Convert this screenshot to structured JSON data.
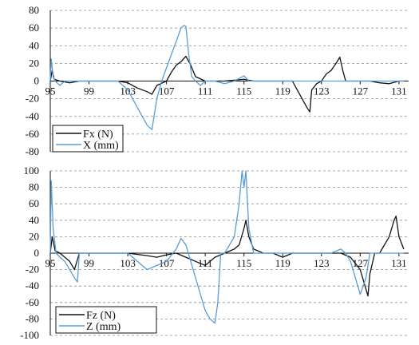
{
  "chart_data": [
    {
      "type": "line",
      "xlim": [
        95,
        132
      ],
      "ylim": [
        -80,
        80
      ],
      "x_ticks": [
        95,
        99,
        103,
        107,
        111,
        115,
        119,
        123,
        127,
        131
      ],
      "y_ticks": [
        80,
        60,
        40,
        20,
        0,
        -20,
        -40,
        -60,
        -80
      ],
      "grid": "horizontal dashed",
      "legend_position": "bottom-left",
      "series": [
        {
          "name": "Fx (N)",
          "color": "#111111",
          "points": [
            [
              95,
              0
            ],
            [
              95.2,
              12
            ],
            [
              95.4,
              2
            ],
            [
              96,
              0
            ],
            [
              97,
              -2
            ],
            [
              98,
              0
            ],
            [
              100,
              0
            ],
            [
              102,
              0
            ],
            [
              103,
              -2
            ],
            [
              104,
              -8
            ],
            [
              105,
              -12
            ],
            [
              105.5,
              -15
            ],
            [
              106,
              -5
            ],
            [
              107,
              0
            ],
            [
              107.5,
              10
            ],
            [
              108,
              18
            ],
            [
              108.5,
              22
            ],
            [
              109,
              28
            ],
            [
              109.5,
              18
            ],
            [
              110,
              5
            ],
            [
              111,
              0
            ],
            [
              112,
              0
            ],
            [
              113,
              0
            ],
            [
              115,
              2
            ],
            [
              116,
              0
            ],
            [
              118,
              0
            ],
            [
              120,
              0
            ],
            [
              120.5,
              -10
            ],
            [
              121,
              -20
            ],
            [
              121.5,
              -30
            ],
            [
              121.8,
              -35
            ],
            [
              122,
              -10
            ],
            [
              122.5,
              -3
            ],
            [
              123,
              0
            ],
            [
              123.5,
              8
            ],
            [
              124,
              12
            ],
            [
              124.5,
              20
            ],
            [
              124.9,
              27
            ],
            [
              125.2,
              12
            ],
            [
              125.5,
              0
            ],
            [
              126,
              0
            ],
            [
              128,
              0
            ],
            [
              129,
              -2
            ],
            [
              130,
              -3
            ],
            [
              131,
              0
            ],
            [
              131.5,
              0
            ]
          ]
        },
        {
          "name": "X (mm)",
          "color": "#5b9bd5",
          "points": [
            [
              95,
              0
            ],
            [
              95.1,
              25
            ],
            [
              95.3,
              5
            ],
            [
              95.5,
              0
            ],
            [
              96,
              -5
            ],
            [
              96.5,
              0
            ],
            [
              97,
              0
            ],
            [
              100,
              0
            ],
            [
              102,
              0
            ],
            [
              102.5,
              -5
            ],
            [
              103,
              -10
            ],
            [
              103.5,
              -20
            ],
            [
              104,
              -30
            ],
            [
              104.5,
              -40
            ],
            [
              105,
              -50
            ],
            [
              105.5,
              -55
            ],
            [
              106,
              -20
            ],
            [
              106.5,
              0
            ],
            [
              107,
              15
            ],
            [
              107.5,
              30
            ],
            [
              108,
              45
            ],
            [
              108.5,
              60
            ],
            [
              108.8,
              63
            ],
            [
              109,
              62
            ],
            [
              109.3,
              30
            ],
            [
              109.6,
              5
            ],
            [
              110,
              0
            ],
            [
              110.5,
              -5
            ],
            [
              111,
              0
            ],
            [
              112,
              0
            ],
            [
              113,
              -3
            ],
            [
              114,
              0
            ],
            [
              115,
              6
            ],
            [
              115.5,
              0
            ],
            [
              116,
              0
            ],
            [
              118,
              0
            ],
            [
              131.5,
              0
            ]
          ]
        }
      ]
    },
    {
      "type": "line",
      "xlim": [
        95,
        132
      ],
      "ylim": [
        -100,
        100
      ],
      "x_ticks": [
        95,
        99,
        103,
        107,
        111,
        115,
        119,
        123,
        127,
        131
      ],
      "y_ticks": [
        100,
        80,
        60,
        40,
        20,
        0,
        -20,
        -40,
        -60,
        -80,
        -100
      ],
      "grid": "horizontal dashed",
      "legend_position": "bottom-left",
      "series": [
        {
          "name": "Fz (N)",
          "color": "#111111",
          "points": [
            [
              95,
              0
            ],
            [
              95.2,
              20
            ],
            [
              95.5,
              3
            ],
            [
              96,
              0
            ],
            [
              97,
              -10
            ],
            [
              97.5,
              -20
            ],
            [
              98,
              0
            ],
            [
              100,
              0
            ],
            [
              103,
              0
            ],
            [
              105,
              -3
            ],
            [
              106,
              -5
            ],
            [
              107,
              -2
            ],
            [
              108,
              0
            ],
            [
              109,
              -5
            ],
            [
              110,
              -10
            ],
            [
              111,
              -15
            ],
            [
              112,
              -5
            ],
            [
              113,
              0
            ],
            [
              114,
              5
            ],
            [
              114.5,
              10
            ],
            [
              115,
              30
            ],
            [
              115.2,
              40
            ],
            [
              115.5,
              20
            ],
            [
              116,
              5
            ],
            [
              117,
              0
            ],
            [
              118,
              0
            ],
            [
              119,
              -5
            ],
            [
              120,
              0
            ],
            [
              122,
              0
            ],
            [
              124,
              0
            ],
            [
              125,
              0
            ],
            [
              126,
              -5
            ],
            [
              127,
              -20
            ],
            [
              127.5,
              -40
            ],
            [
              127.8,
              -52
            ],
            [
              128,
              -25
            ],
            [
              128.5,
              0
            ],
            [
              129,
              0
            ],
            [
              130,
              20
            ],
            [
              130.5,
              40
            ],
            [
              130.7,
              45
            ],
            [
              131,
              20
            ],
            [
              131.5,
              5
            ]
          ]
        },
        {
          "name": "Z (mm)",
          "color": "#5b9bd5",
          "points": [
            [
              95,
              0
            ],
            [
              95.1,
              88
            ],
            [
              95.3,
              30
            ],
            [
              95.6,
              0
            ],
            [
              96,
              -5
            ],
            [
              96.5,
              -10
            ],
            [
              97,
              -20
            ],
            [
              97.5,
              -30
            ],
            [
              97.8,
              -35
            ],
            [
              98,
              0
            ],
            [
              99,
              0
            ],
            [
              100,
              0
            ],
            [
              103,
              0
            ],
            [
              104,
              -10
            ],
            [
              105,
              -20
            ],
            [
              106,
              -15
            ],
            [
              107,
              -10
            ],
            [
              108,
              5
            ],
            [
              108.5,
              18
            ],
            [
              109,
              10
            ],
            [
              109.5,
              -10
            ],
            [
              110,
              -30
            ],
            [
              110.5,
              -50
            ],
            [
              111,
              -70
            ],
            [
              111.5,
              -80
            ],
            [
              112,
              -85
            ],
            [
              112.3,
              -60
            ],
            [
              112.6,
              0
            ],
            [
              113,
              0
            ],
            [
              114,
              20
            ],
            [
              114.5,
              60
            ],
            [
              114.8,
              100
            ],
            [
              115,
              80
            ],
            [
              115.2,
              100
            ],
            [
              115.5,
              30
            ],
            [
              116,
              0
            ],
            [
              117,
              0
            ],
            [
              120,
              0
            ],
            [
              122,
              0
            ],
            [
              124,
              0
            ],
            [
              125,
              5
            ],
            [
              125.5,
              0
            ],
            [
              126,
              -10
            ],
            [
              126.5,
              -30
            ],
            [
              127,
              -50
            ],
            [
              127.3,
              -40
            ],
            [
              127.6,
              -30
            ],
            [
              128,
              0
            ],
            [
              129,
              0
            ],
            [
              131.5,
              0
            ]
          ]
        }
      ]
    }
  ]
}
